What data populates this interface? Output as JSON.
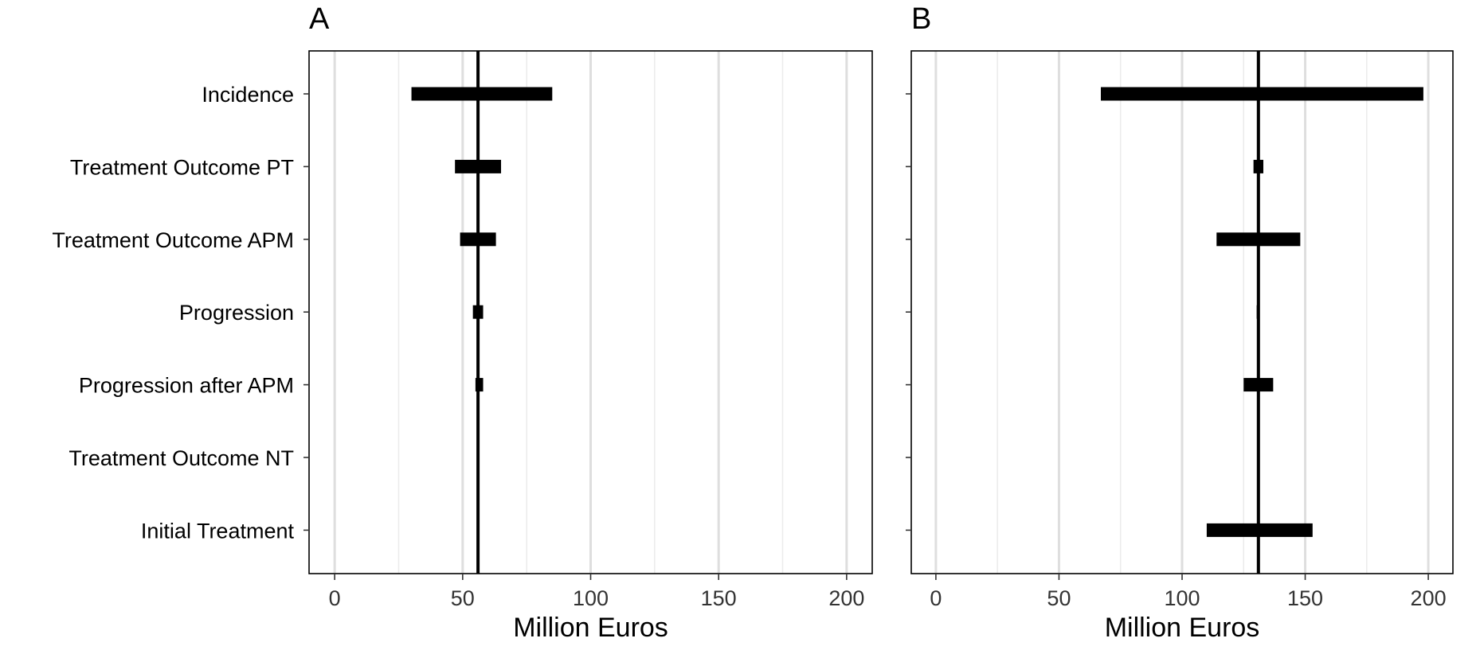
{
  "chart_data": [
    {
      "type": "bar",
      "panel_label": "A",
      "orientation": "horizontal",
      "style": "tornado",
      "xlabel": "Million Euros",
      "ylabel": "",
      "xlim": [
        -10,
        210
      ],
      "x_ticks": [
        0,
        50,
        100,
        150,
        200
      ],
      "x_tick_labels": [
        "0",
        "50",
        "100",
        "150",
        "200"
      ],
      "minor_gridlines": [
        25,
        75,
        125,
        175
      ],
      "reference_line": 56,
      "categories": [
        "Incidence",
        "Treatment Outcome PT",
        "Treatment Outcome APM",
        "Progression",
        "Progression after APM",
        "Treatment Outcome NT",
        "Initial Treatment"
      ],
      "ranges": [
        [
          30,
          85
        ],
        [
          47,
          65
        ],
        [
          49,
          63
        ],
        [
          54,
          58
        ],
        [
          55,
          58
        ],
        [
          55.6,
          56.4
        ],
        [
          55.6,
          56.4
        ]
      ],
      "grid": "vertical",
      "legend": "none"
    },
    {
      "type": "bar",
      "panel_label": "B",
      "orientation": "horizontal",
      "style": "tornado",
      "xlabel": "Million Euros",
      "ylabel": "",
      "xlim": [
        -10,
        210
      ],
      "x_ticks": [
        0,
        50,
        100,
        150,
        200
      ],
      "x_tick_labels": [
        "0",
        "50",
        "100",
        "150",
        "200"
      ],
      "minor_gridlines": [
        25,
        75,
        125,
        175
      ],
      "reference_line": 131,
      "categories": [
        "Incidence",
        "Treatment Outcome PT",
        "Treatment Outcome APM",
        "Progression",
        "Progression after APM",
        "Treatment Outcome NT",
        "Initial Treatment"
      ],
      "ranges": [
        [
          67,
          198
        ],
        [
          129,
          133
        ],
        [
          114,
          148
        ],
        [
          130.3,
          131.5
        ],
        [
          125,
          137
        ],
        [
          130.5,
          131.5
        ],
        [
          110,
          153
        ]
      ],
      "grid": "vertical",
      "legend": "none"
    }
  ],
  "colors": {
    "bar": "#000000",
    "reference_line": "#000000",
    "grid_major": "#dedede",
    "grid_minor": "#ebebeb",
    "panel_border": "#000000",
    "tick_text": "#333333"
  }
}
